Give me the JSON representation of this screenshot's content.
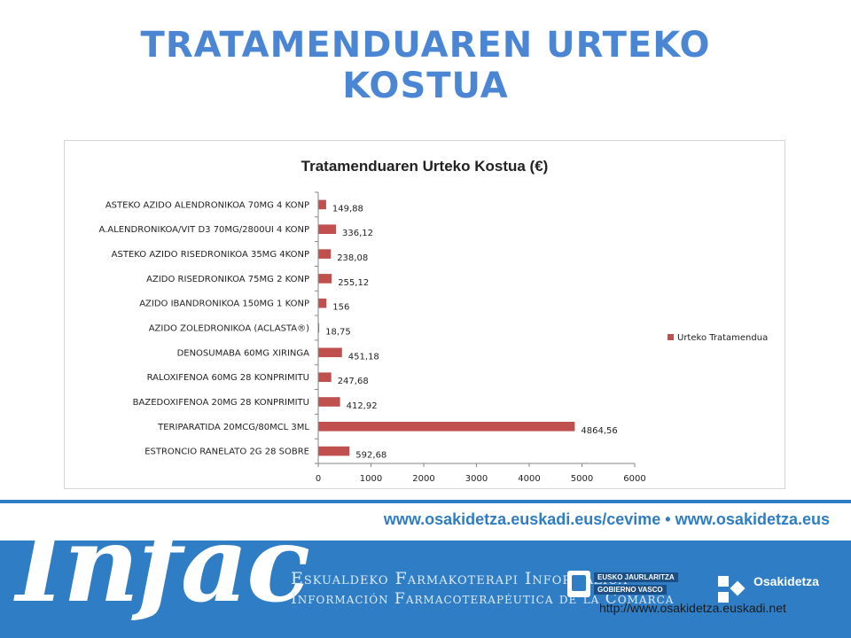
{
  "slide": {
    "title_line1": "TRATAMENDUAREN URTEKO",
    "title_line2": "KOSTUA"
  },
  "chart_data": {
    "type": "bar",
    "orientation": "horizontal",
    "title": "Tratamenduaren Urteko Kostua (€)",
    "categories": [
      "ASTEKO AZIDO ALENDRONIKOA 70MG 4 KONP",
      "A.ALENDRONIKOA/VIT D3 70MG/2800UI 4 KONP",
      "ASTEKO AZIDO RISEDRONIKOA 35MG 4KONP",
      "AZIDO RISEDRONIKOA 75MG 2 KONP",
      "AZIDO  IBANDRONIKOA  150MG 1 KONP",
      "AZIDO ZOLEDRONIKOA (ACLASTA®)",
      "DENOSUMABA 60MG XIRINGA",
      "RALOXIFENOA 60MG 28 KONPRIMITU",
      "BAZEDOXIFENOA 20MG 28 KONPRIMITU",
      "TERIPARATIDA 20MCG/80MCL  3ML",
      "ESTRONCIO RANELATO 2G 28 SOBRE"
    ],
    "series": [
      {
        "name": "Urteko Tratamendua",
        "values": [
          149.88,
          336.12,
          238.08,
          255.12,
          156,
          18.75,
          451.18,
          247.68,
          412.92,
          4864.56,
          592.68
        ],
        "labels": [
          "149,88",
          "336,12",
          "238,08",
          "255,12",
          "156",
          "18,75",
          "451,18",
          "247,68",
          "412,92",
          "4864,56",
          "592,68"
        ],
        "color": "#c0504d"
      }
    ],
    "xlim": [
      0,
      6000
    ],
    "xticks": [
      0,
      1000,
      2000,
      3000,
      4000,
      5000,
      6000
    ],
    "grid": false,
    "legend": "right"
  },
  "banner": {
    "urls": "www.osakidetza.euskadi.eus/cevime  •  www.osakidetza.eus",
    "logo": "Infac",
    "tagline_eu": "Eskualdeko Farmakoterapi Informazioa",
    "tagline_es": "Información Farmacoterapéutica de la Comarca",
    "gov_line1": "EUSKO JAURLARITZA",
    "gov_line2": "GOBIERNO VASCO",
    "org_name": "Osakidetza",
    "footer_link": "http://www.osakidetza.euskadi.net"
  },
  "colors": {
    "title": "#4a86d4",
    "bar": "#c0504d",
    "banner": "#2f7dc4"
  }
}
